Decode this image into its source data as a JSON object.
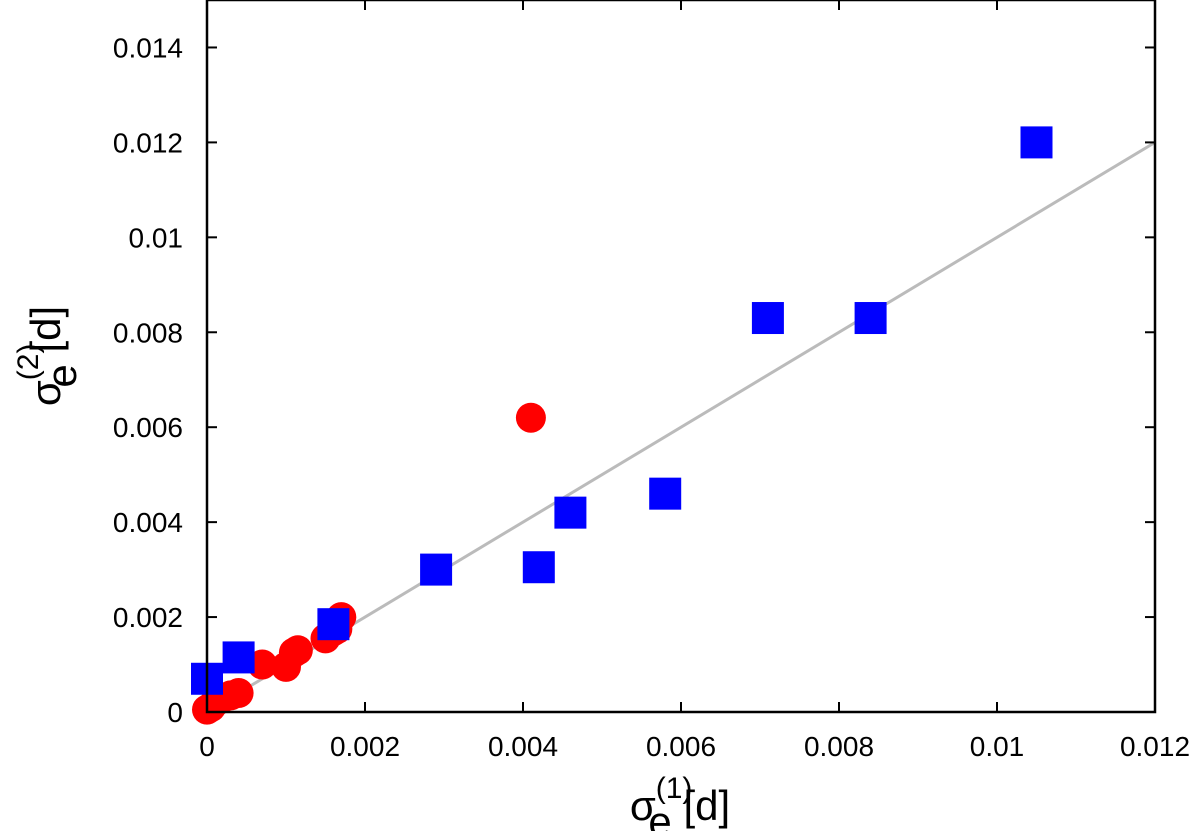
{
  "chart_data": {
    "type": "scatter",
    "title": "",
    "xlabel": {
      "symbol": "σ",
      "sup": "(1)",
      "sub": "e",
      "unit": " [d]"
    },
    "ylabel": {
      "symbol": "σ",
      "sup": "(2)",
      "sub": "e",
      "unit": " [d]"
    },
    "xlim": [
      0,
      0.012
    ],
    "ylim": [
      0,
      0.015
    ],
    "x_ticks": [
      {
        "value": 0,
        "label": "0"
      },
      {
        "value": 0.002,
        "label": "0.002"
      },
      {
        "value": 0.004,
        "label": "0.004"
      },
      {
        "value": 0.006,
        "label": "0.006"
      },
      {
        "value": 0.008,
        "label": "0.008"
      },
      {
        "value": 0.01,
        "label": "0.01"
      },
      {
        "value": 0.012,
        "label": "0.012"
      }
    ],
    "y_ticks": [
      {
        "value": 0,
        "label": "0"
      },
      {
        "value": 0.002,
        "label": "0.002"
      },
      {
        "value": 0.004,
        "label": "0.004"
      },
      {
        "value": 0.006,
        "label": "0.006"
      },
      {
        "value": 0.008,
        "label": "0.008"
      },
      {
        "value": 0.01,
        "label": "0.01"
      },
      {
        "value": 0.012,
        "label": "0.012"
      },
      {
        "value": 0.014,
        "label": "0.014"
      }
    ],
    "grid": false,
    "series": [
      {
        "name": "red-circles",
        "marker": "circle",
        "color": "#ff0000",
        "points": [
          [
            0.0,
            5e-05
          ],
          [
            5e-05,
            0.0001
          ],
          [
            0.0001,
            0.0002
          ],
          [
            0.0002,
            0.0003
          ],
          [
            0.0003,
            0.00035
          ],
          [
            0.0004,
            0.0004
          ],
          [
            0.0007,
            0.001
          ],
          [
            0.001,
            0.00095
          ],
          [
            0.0011,
            0.00125
          ],
          [
            0.00115,
            0.0013
          ],
          [
            0.0015,
            0.00155
          ],
          [
            0.0016,
            0.0017
          ],
          [
            0.00165,
            0.00175
          ],
          [
            0.0017,
            0.002
          ],
          [
            0.0041,
            0.0062
          ]
        ]
      },
      {
        "name": "blue-squares",
        "marker": "square",
        "color": "#0000ff",
        "points": [
          [
            0.0,
            0.0007
          ],
          [
            0.0004,
            0.00115
          ],
          [
            0.0016,
            0.00185
          ],
          [
            0.0029,
            0.003
          ],
          [
            0.0042,
            0.00305
          ],
          [
            0.0046,
            0.0042
          ],
          [
            0.0058,
            0.0046
          ],
          [
            0.0071,
            0.0083
          ],
          [
            0.0084,
            0.0083
          ],
          [
            0.0105,
            0.012
          ]
        ]
      }
    ],
    "fit_line": {
      "name": "linear-fit",
      "color": "#bbbbbb",
      "points": [
        [
          0,
          0
        ],
        [
          0.012,
          0.012
        ]
      ]
    }
  }
}
